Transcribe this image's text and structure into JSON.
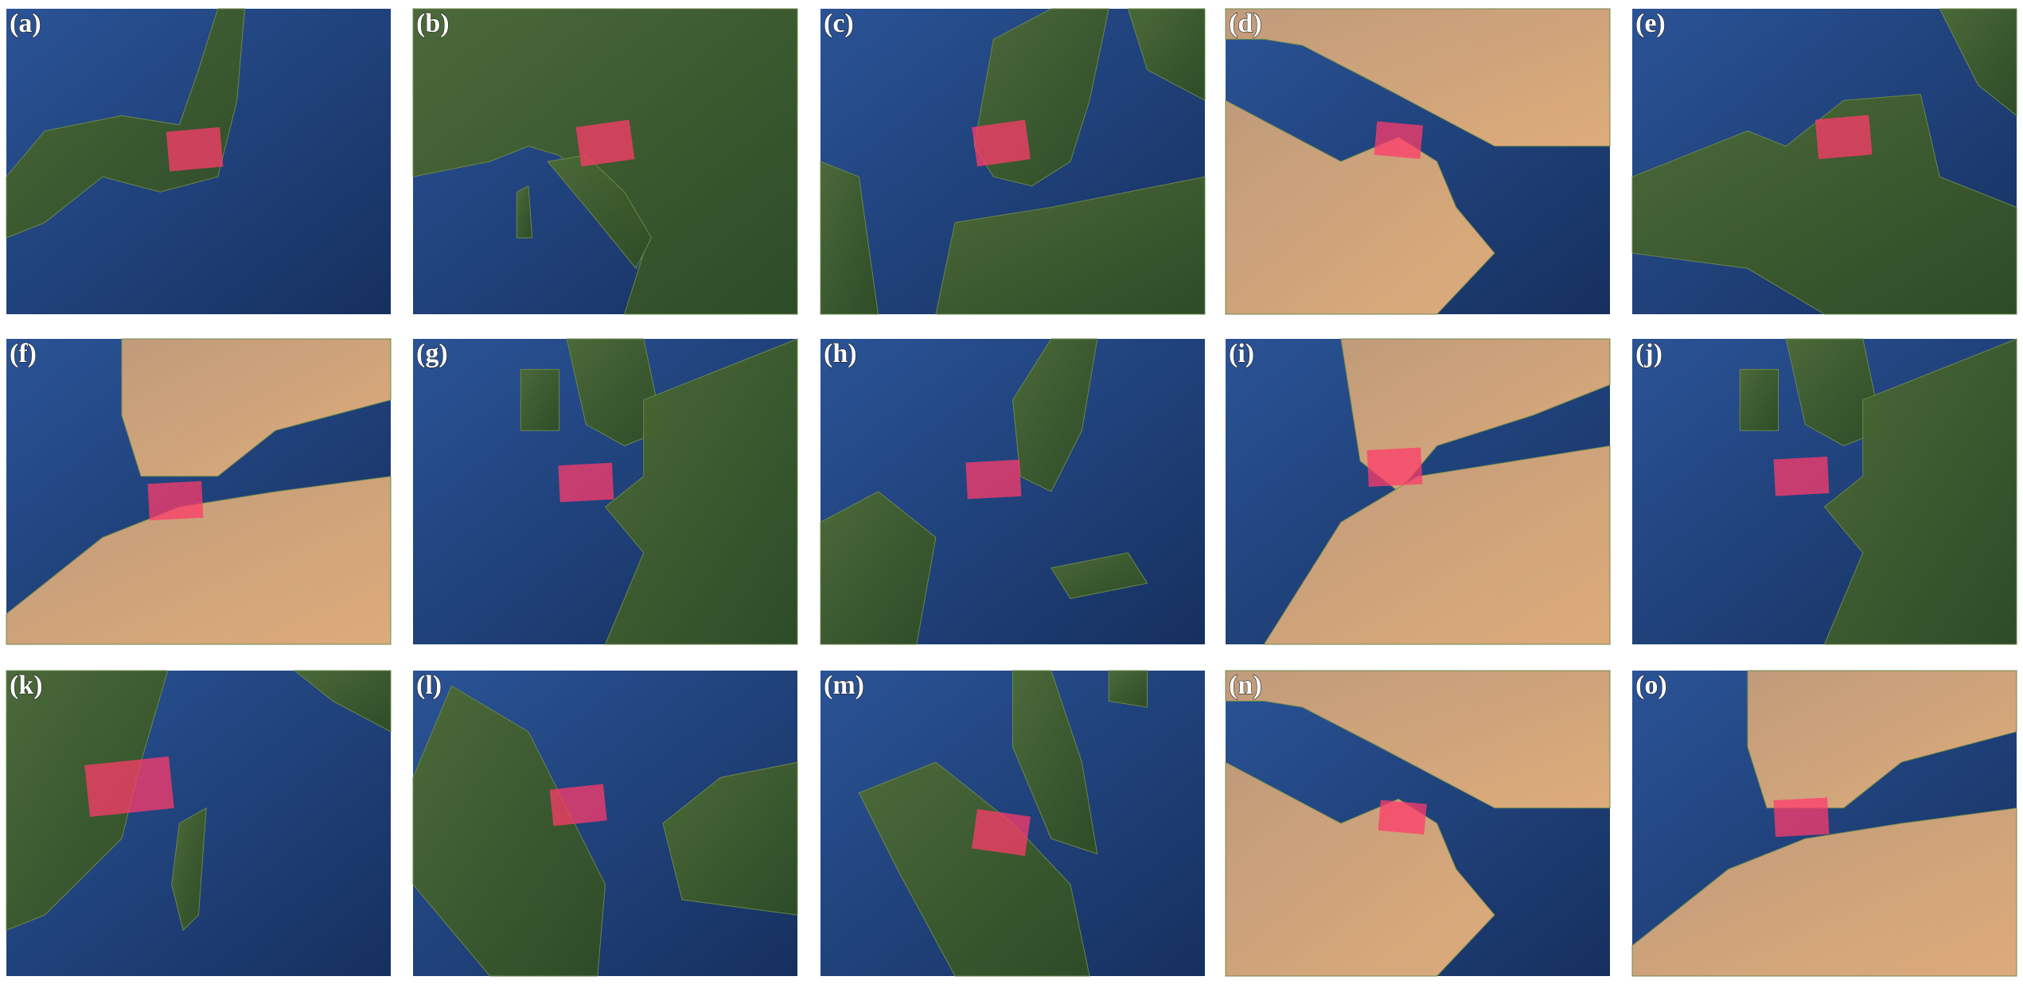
{
  "panels": [
    {
      "label": "(a)"
    },
    {
      "label": "(b)"
    },
    {
      "label": "(c)"
    },
    {
      "label": "(d)"
    },
    {
      "label": "(e)"
    },
    {
      "label": "(f)"
    },
    {
      "label": "(g)"
    },
    {
      "label": "(h)"
    },
    {
      "label": "(i)"
    },
    {
      "label": "(j)"
    },
    {
      "label": "(k)"
    },
    {
      "label": "(l)"
    },
    {
      "label": "(m)"
    },
    {
      "label": "(n)"
    },
    {
      "label": "(o)"
    }
  ]
}
